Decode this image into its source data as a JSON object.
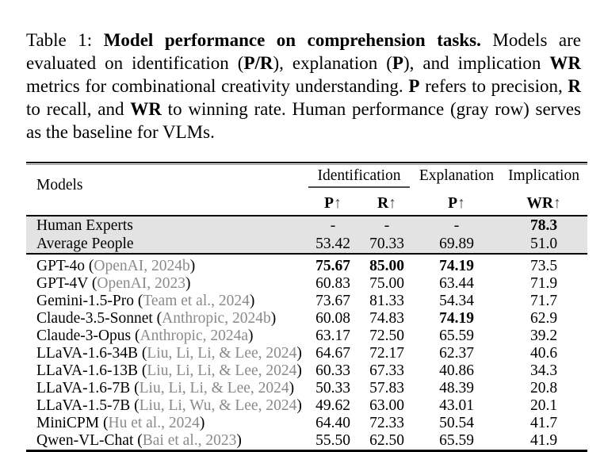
{
  "caption": {
    "label_prefix": "Table 1: ",
    "segments": [
      {
        "text": "Table 1: ",
        "bold": false
      },
      {
        "text": "Model performance on comprehension tasks.",
        "bold": true
      },
      {
        "text": " Models are evaluated on identification (",
        "bold": false
      },
      {
        "text": "P/R",
        "bold": true
      },
      {
        "text": "), explanation (",
        "bold": false
      },
      {
        "text": "P",
        "bold": true
      },
      {
        "text": "), and implication ",
        "bold": false
      },
      {
        "text": "WR",
        "bold": true
      },
      {
        "text": " metrics for combinational creativity understanding. ",
        "bold": false
      },
      {
        "text": "P",
        "bold": true
      },
      {
        "text": " refers to precision, ",
        "bold": false
      },
      {
        "text": "R",
        "bold": true
      },
      {
        "text": " to recall, and ",
        "bold": false
      },
      {
        "text": "WR",
        "bold": true
      },
      {
        "text": " to winning rate. Human performance (gray row) serves as the baseline for VLMs.",
        "bold": false
      }
    ]
  },
  "table": {
    "header": {
      "models_label": "Models",
      "arrow": "↑",
      "groups": [
        {
          "label": "Identification",
          "span": 2,
          "underline": true
        },
        {
          "label": "Explanation",
          "span": 1,
          "underline": false
        },
        {
          "label": "Implication",
          "span": 1,
          "underline": false
        }
      ],
      "sub_columns": [
        {
          "metric": "P"
        },
        {
          "metric": "R"
        },
        {
          "metric": "P"
        },
        {
          "metric": "WR"
        }
      ]
    },
    "baseline_rows": [
      {
        "model": "Human Experts",
        "citation": null,
        "values": [
          {
            "text": "-",
            "bold": false
          },
          {
            "text": "-",
            "bold": false
          },
          {
            "text": "-",
            "bold": false
          },
          {
            "text": "78.3",
            "bold": true
          }
        ]
      },
      {
        "model": "Average People",
        "citation": null,
        "values": [
          {
            "text": "53.42",
            "bold": false
          },
          {
            "text": "70.33",
            "bold": false
          },
          {
            "text": "69.89",
            "bold": false
          },
          {
            "text": "51.0",
            "bold": false
          }
        ]
      }
    ],
    "model_rows": [
      {
        "model": "GPT-4o",
        "citation": "OpenAI, 2024b",
        "values": [
          {
            "text": "75.67",
            "bold": true
          },
          {
            "text": "85.00",
            "bold": true
          },
          {
            "text": "74.19",
            "bold": true
          },
          {
            "text": "73.5",
            "bold": false
          }
        ]
      },
      {
        "model": "GPT-4V",
        "citation": "OpenAI, 2023",
        "values": [
          {
            "text": "60.83",
            "bold": false
          },
          {
            "text": "75.00",
            "bold": false
          },
          {
            "text": "63.44",
            "bold": false
          },
          {
            "text": "71.9",
            "bold": false
          }
        ]
      },
      {
        "model": "Gemini-1.5-Pro",
        "citation": "Team et al., 2024",
        "values": [
          {
            "text": "73.67",
            "bold": false
          },
          {
            "text": "81.33",
            "bold": false
          },
          {
            "text": "54.34",
            "bold": false
          },
          {
            "text": "71.7",
            "bold": false
          }
        ]
      },
      {
        "model": "Claude-3.5-Sonnet",
        "citation": "Anthropic, 2024b",
        "values": [
          {
            "text": "60.08",
            "bold": false
          },
          {
            "text": "74.83",
            "bold": false
          },
          {
            "text": "74.19",
            "bold": true
          },
          {
            "text": "62.9",
            "bold": false
          }
        ]
      },
      {
        "model": "Claude-3-Opus",
        "citation": "Anthropic, 2024a",
        "values": [
          {
            "text": "63.17",
            "bold": false
          },
          {
            "text": "72.50",
            "bold": false
          },
          {
            "text": "65.59",
            "bold": false
          },
          {
            "text": "39.2",
            "bold": false
          }
        ]
      },
      {
        "model": "LLaVA-1.6-34B",
        "citation": "Liu, Li, Li, & Lee, 2024",
        "values": [
          {
            "text": "64.67",
            "bold": false
          },
          {
            "text": "72.17",
            "bold": false
          },
          {
            "text": "62.37",
            "bold": false
          },
          {
            "text": "40.6",
            "bold": false
          }
        ]
      },
      {
        "model": "LLaVA-1.6-13B",
        "citation": "Liu, Li, Li, & Lee, 2024",
        "values": [
          {
            "text": "60.33",
            "bold": false
          },
          {
            "text": "67.33",
            "bold": false
          },
          {
            "text": "40.86",
            "bold": false
          },
          {
            "text": "34.3",
            "bold": false
          }
        ]
      },
      {
        "model": "LLaVA-1.6-7B",
        "citation": "Liu, Li, Li, & Lee, 2024",
        "values": [
          {
            "text": "50.33",
            "bold": false
          },
          {
            "text": "57.83",
            "bold": false
          },
          {
            "text": "48.39",
            "bold": false
          },
          {
            "text": "20.8",
            "bold": false
          }
        ]
      },
      {
        "model": "LLaVA-1.5-7B",
        "citation": "Liu, Li, Wu, & Lee, 2024",
        "values": [
          {
            "text": "49.62",
            "bold": false
          },
          {
            "text": "63.00",
            "bold": false
          },
          {
            "text": "43.01",
            "bold": false
          },
          {
            "text": "20.1",
            "bold": false
          }
        ]
      },
      {
        "model": "MiniCPM",
        "citation": "Hu et al., 2024",
        "values": [
          {
            "text": "64.40",
            "bold": false
          },
          {
            "text": "72.33",
            "bold": false
          },
          {
            "text": "50.54",
            "bold": false
          },
          {
            "text": "41.7",
            "bold": false
          }
        ]
      },
      {
        "model": "Qwen-VL-Chat",
        "citation": "Bai et al., 2023",
        "values": [
          {
            "text": "55.50",
            "bold": false
          },
          {
            "text": "62.50",
            "bold": false
          },
          {
            "text": "65.59",
            "bold": false
          },
          {
            "text": "41.9",
            "bold": false
          }
        ]
      }
    ],
    "colors": {
      "citation_gray": "#8a8a8a",
      "highlight_bg": "#e3e3e3",
      "rule_black": "#000000"
    }
  }
}
